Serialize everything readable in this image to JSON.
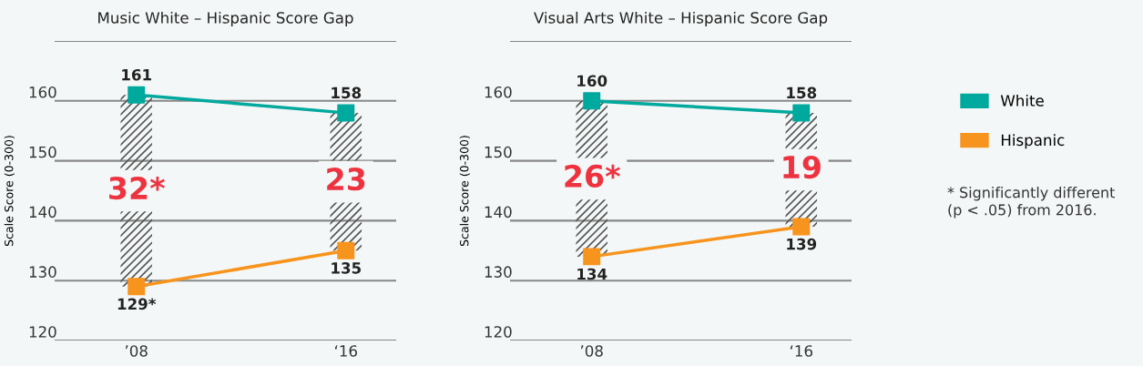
{
  "chart_data": [
    {
      "type": "line",
      "title": "Music White – Hispanic Score Gap",
      "ylabel": "Scale Score (0-300)",
      "categories": [
        "’08",
        "‘16"
      ],
      "ylim": [
        120,
        170
      ],
      "yticks": [
        120,
        130,
        140,
        150,
        160,
        {
          "value": 170,
          "label": null
        }
      ],
      "grid": "y",
      "marker": "square",
      "legend": "right",
      "series": [
        {
          "type": "bar",
          "base": [
            129,
            135
          ],
          "color": "#555555",
          "values": [
            32,
            23
          ],
          "value_labels": [
            "32*",
            "23"
          ]
        },
        {
          "name": "White",
          "color": "#00a99d",
          "values": [
            161,
            158
          ],
          "value_labels": [
            "161",
            "158"
          ]
        },
        {
          "name": "Hispanic",
          "color": "#f7941d",
          "values": [
            129,
            135
          ],
          "value_labels": [
            "129*",
            "135"
          ]
        }
      ]
    },
    {
      "type": "line",
      "title": "Visual Arts White – Hispanic Score Gap",
      "ylabel": "Scale Score (0-300)",
      "categories": [
        "’08",
        "‘16"
      ],
      "ylim": [
        120,
        170
      ],
      "yticks": [
        120,
        130,
        140,
        150,
        160,
        {
          "value": 170,
          "label": null
        }
      ],
      "grid": "y",
      "marker": "square",
      "annotations": [
        "* Significantly different\n(p < .05) from 2016."
      ],
      "series": [
        {
          "type": "bar",
          "base": [
            134,
            139
          ],
          "color": "#555555",
          "values": [
            26,
            19
          ],
          "value_labels": [
            "26*",
            "19"
          ]
        },
        {
          "color": "#00a99d",
          "values": [
            160,
            158
          ],
          "value_labels": [
            "160",
            "158"
          ]
        },
        {
          "color": "#f7941d",
          "values": [
            134,
            139
          ],
          "value_labels": [
            "134",
            "139"
          ]
        }
      ]
    }
  ]
}
